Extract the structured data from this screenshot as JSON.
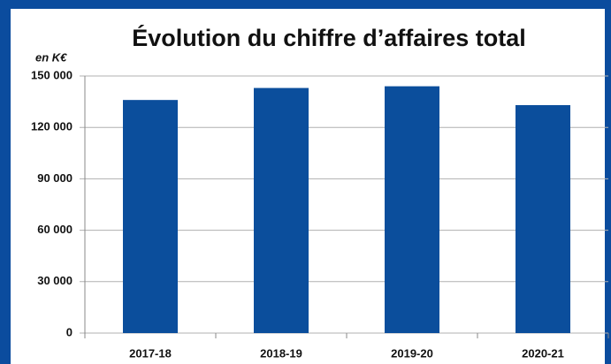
{
  "chart_data": {
    "type": "bar",
    "title": "Évolution du chiffre d’affaires total",
    "unit_label": "en K€",
    "categories": [
      "2017-18",
      "2018-19",
      "2019-20",
      "2020-21"
    ],
    "values": [
      136000,
      143000,
      144000,
      133000
    ],
    "color": "#0b4e9c",
    "ylim": [
      0,
      150000
    ],
    "yticks": [
      0,
      {
        "value": 30000,
        "label": "30 000"
      },
      {
        "value": 60000,
        "label": "60 000"
      },
      {
        "value": 90000,
        "label": "90 000"
      },
      {
        "value": 120000,
        "label": "120 000"
      },
      {
        "value": 150000,
        "label": "150 000"
      }
    ],
    "grid": true
  }
}
